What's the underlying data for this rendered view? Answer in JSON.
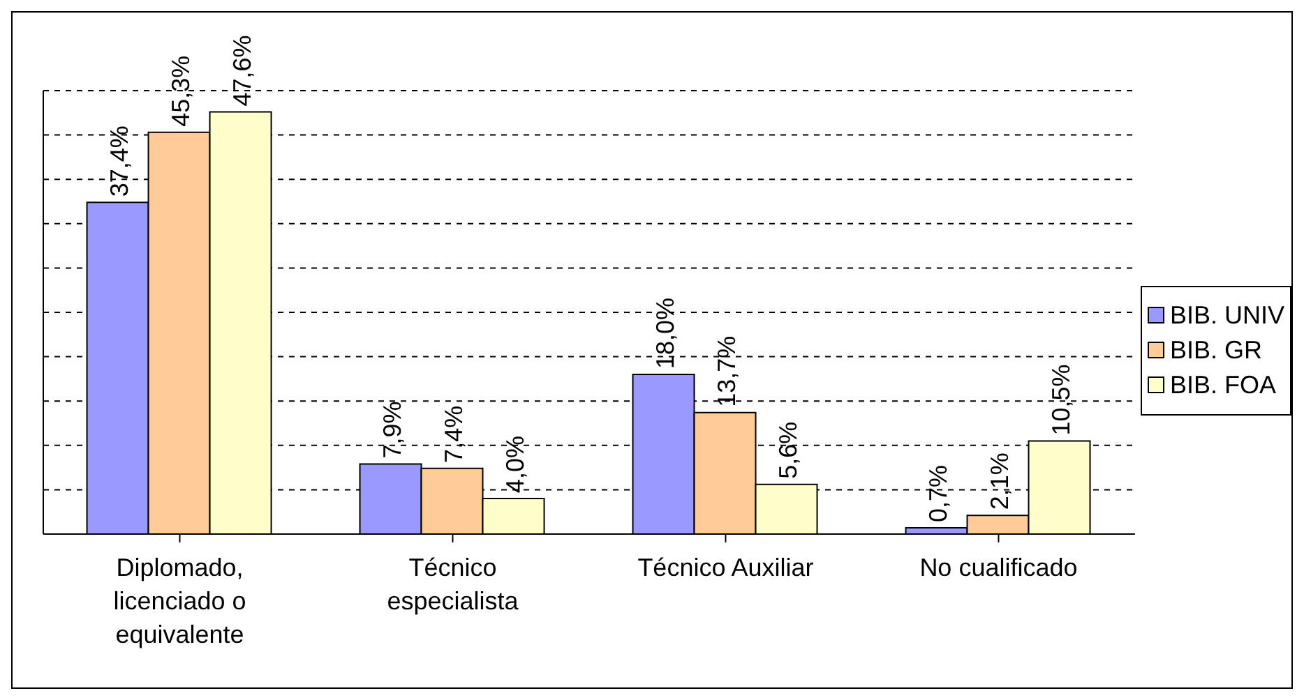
{
  "chart_data": {
    "type": "bar",
    "categories": [
      "Diplomado, licenciado o equivalente",
      "Técnico especialista",
      "Técnico Auxiliar",
      "No cualificado"
    ],
    "series": [
      {
        "name": "BIB. UNIV",
        "color": "#9999ff",
        "values": [
          37.4,
          7.9,
          18.0,
          0.7
        ],
        "value_labels": [
          "37,4%",
          "7,9%",
          "18,0%",
          "0,7%"
        ]
      },
      {
        "name": "BIB. GR",
        "color": "#ffcc99",
        "values": [
          45.3,
          7.4,
          13.7,
          2.1
        ],
        "value_labels": [
          "45,3%",
          "7,4%",
          "13,7%",
          "2,1%"
        ]
      },
      {
        "name": "BIB. FOA",
        "color": "#ffffcc",
        "values": [
          47.6,
          4.0,
          5.6,
          10.5
        ],
        "value_labels": [
          "47,6%",
          "4,0%",
          "5,6%",
          "10,5%"
        ]
      }
    ],
    "ylim": [
      0,
      50
    ],
    "tick_labels": "x",
    "grid": "y",
    "legend": "right"
  }
}
